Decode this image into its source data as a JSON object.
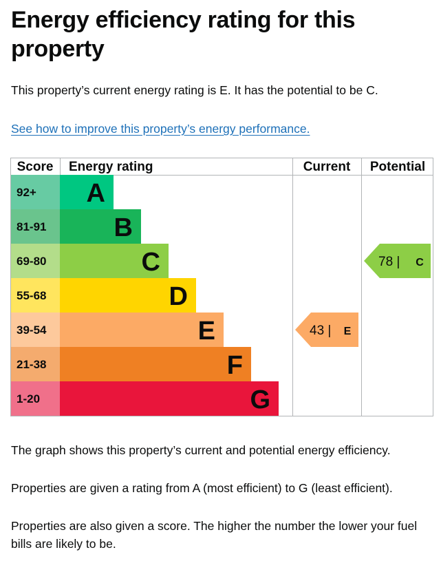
{
  "heading": "Energy efficiency rating for this property",
  "intro": "This property’s current energy rating is E. It has the potential to be C.",
  "improve_link": "See how to improve this property’s energy performance.",
  "chart_data": {
    "type": "table",
    "columns": [
      "Score",
      "Energy rating",
      "Current",
      "Potential"
    ],
    "bands": [
      {
        "score": "92+",
        "letter": "A",
        "color": "#00c781",
        "score_bg": "#67cba3"
      },
      {
        "score": "81-91",
        "letter": "B",
        "color": "#19b459",
        "score_bg": "#6ac48d"
      },
      {
        "score": "69-80",
        "letter": "C",
        "color": "#8dce46",
        "score_bg": "#b3dd8a"
      },
      {
        "score": "55-68",
        "letter": "D",
        "color": "#ffd500",
        "score_bg": "#ffe55e"
      },
      {
        "score": "39-54",
        "letter": "E",
        "color": "#fcaa65",
        "score_bg": "#fdc99c"
      },
      {
        "score": "21-38",
        "letter": "F",
        "color": "#ef8023",
        "score_bg": "#f4ab6e"
      },
      {
        "score": "1-20",
        "letter": "G",
        "color": "#e9153b",
        "score_bg": "#f0708a"
      }
    ],
    "current": {
      "value": 43,
      "letter": "E",
      "label": "43 |",
      "color": "#fcaa65"
    },
    "potential": {
      "value": 78,
      "letter": "C",
      "label": "78 |",
      "color": "#8dce46"
    }
  },
  "footer": [
    "The graph shows this property’s current and potential energy efficiency.",
    "Properties are given a rating from A (most efficient) to G (least efficient).",
    "Properties are also given a score. The higher the number the lower your fuel bills are likely to be."
  ]
}
